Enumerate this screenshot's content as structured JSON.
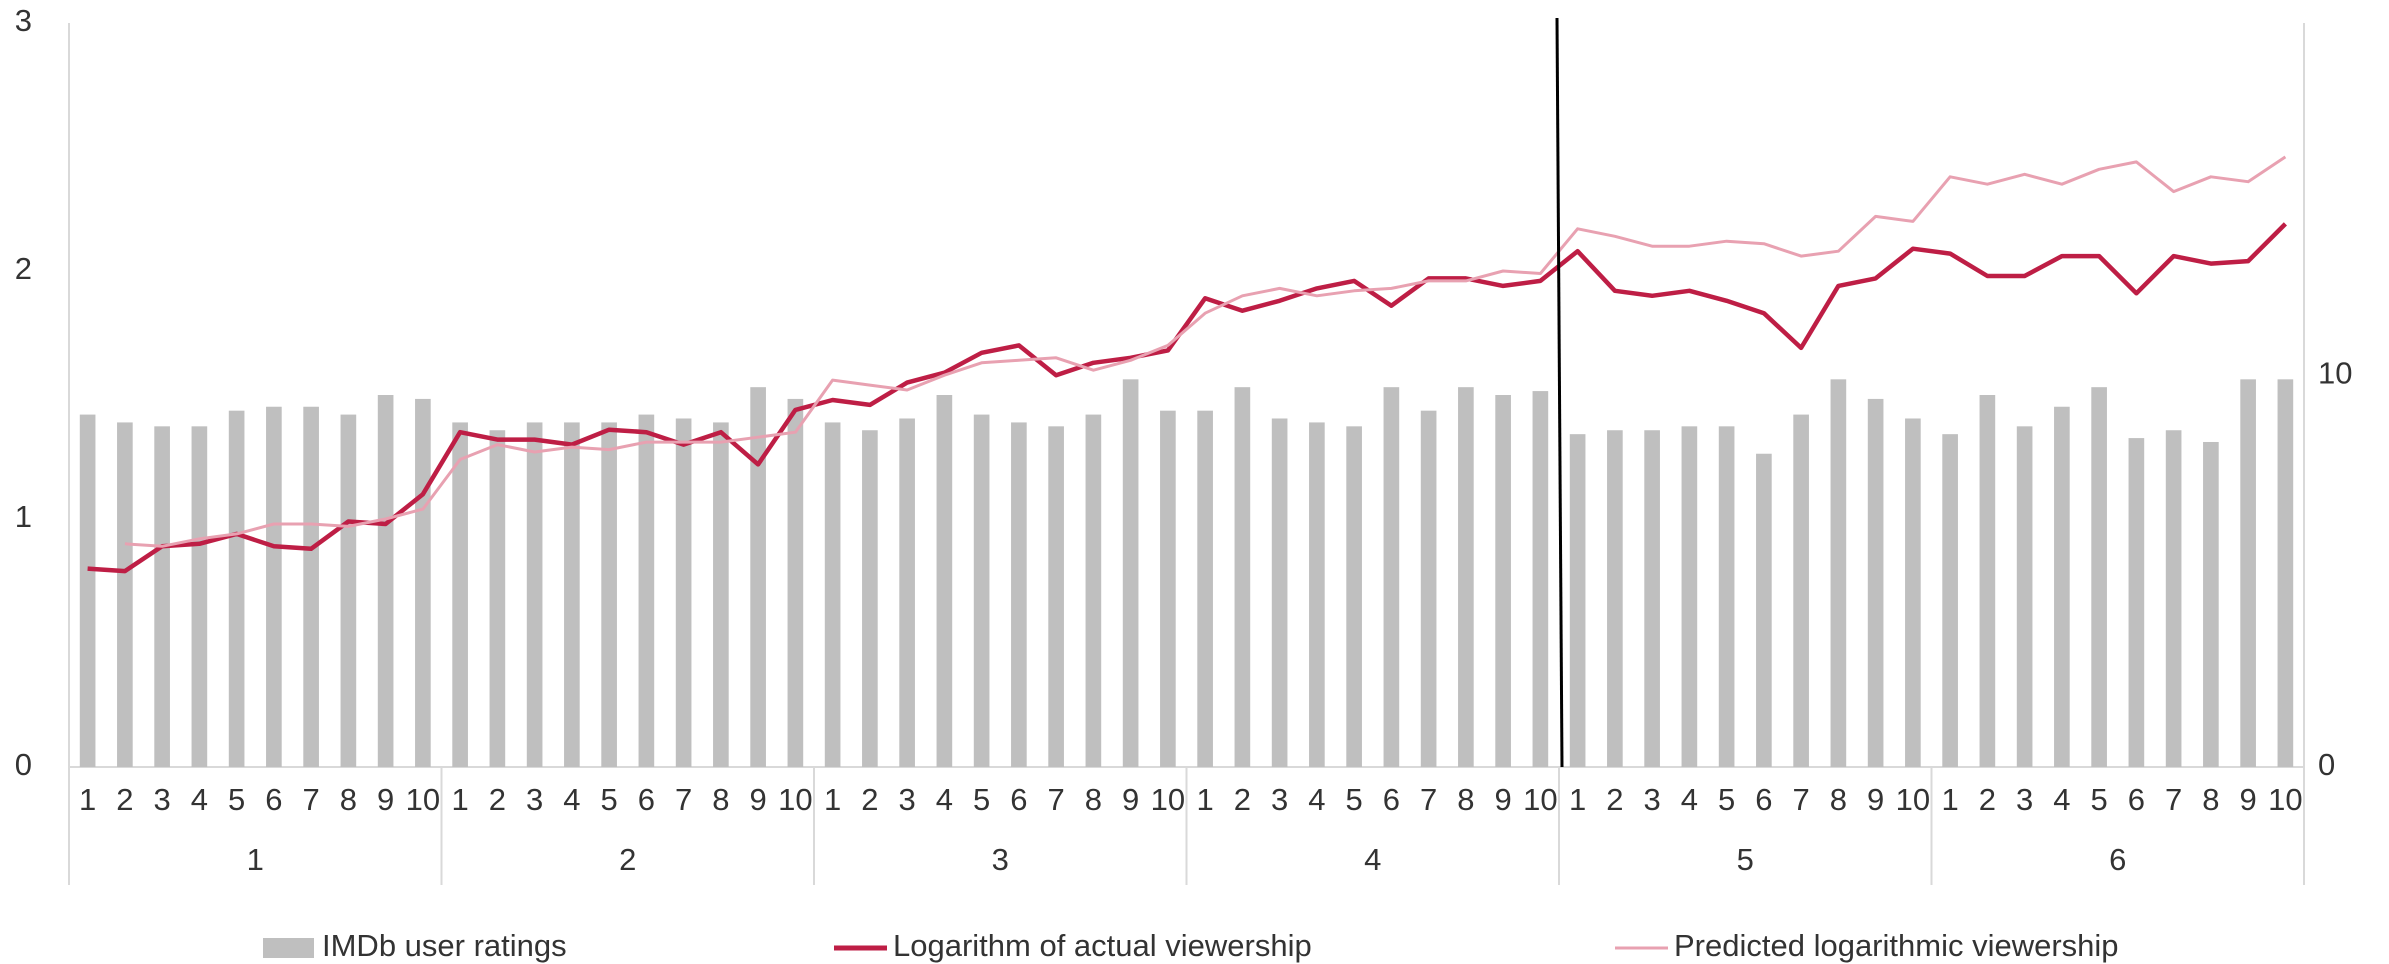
{
  "chart_data": {
    "type": "bar",
    "categories": [
      "1",
      "2",
      "3",
      "4",
      "5",
      "6",
      "7",
      "8",
      "9",
      "10",
      "1",
      "2",
      "3",
      "4",
      "5",
      "6",
      "7",
      "8",
      "9",
      "10",
      "1",
      "2",
      "3",
      "4",
      "5",
      "6",
      "7",
      "8",
      "9",
      "10",
      "1",
      "2",
      "3",
      "4",
      "5",
      "6",
      "7",
      "8",
      "9",
      "10",
      "1",
      "2",
      "3",
      "4",
      "5",
      "6",
      "7",
      "8",
      "9",
      "10",
      "1",
      "2",
      "3",
      "4",
      "5",
      "6",
      "7",
      "8",
      "9",
      "10"
    ],
    "groups": [
      "1",
      "2",
      "3",
      "4",
      "5",
      "6"
    ],
    "ylim": [
      0,
      3
    ],
    "yticks": [
      0,
      1,
      2,
      3
    ],
    "y2lim": [
      0,
      19
    ],
    "y2ticks": [
      0,
      10
    ],
    "series": [
      {
        "name": "IMDb user ratings",
        "type": "bar",
        "axis": "y2",
        "color": "#bfbfbf",
        "values": [
          9.0,
          8.8,
          8.7,
          8.7,
          9.1,
          9.2,
          9.2,
          9.0,
          9.5,
          9.4,
          8.8,
          8.6,
          8.8,
          8.8,
          8.8,
          9.0,
          8.9,
          8.8,
          9.7,
          9.4,
          8.8,
          8.6,
          8.9,
          9.5,
          9.0,
          8.8,
          8.7,
          9.0,
          9.9,
          9.1,
          9.1,
          9.7,
          8.9,
          8.8,
          8.7,
          9.7,
          9.1,
          9.7,
          9.5,
          9.6,
          8.5,
          8.6,
          8.6,
          8.7,
          8.7,
          8.0,
          9.0,
          9.9,
          9.4,
          8.9,
          8.5,
          9.5,
          8.7,
          9.2,
          9.7,
          8.4,
          8.6,
          8.3,
          9.9,
          9.9
        ]
      },
      {
        "name": "Logarithm of actual viewership",
        "type": "line",
        "color": "#be1e45",
        "values": [
          0.8,
          0.79,
          0.89,
          0.9,
          0.94,
          0.89,
          0.88,
          0.99,
          0.98,
          1.1,
          1.35,
          1.32,
          1.32,
          1.3,
          1.36,
          1.35,
          1.3,
          1.35,
          1.22,
          1.44,
          1.48,
          1.46,
          1.55,
          1.59,
          1.67,
          1.7,
          1.58,
          1.63,
          1.65,
          1.68,
          1.89,
          1.84,
          1.88,
          1.93,
          1.96,
          1.86,
          1.97,
          1.97,
          1.94,
          1.96,
          2.08,
          1.92,
          1.9,
          1.92,
          1.88,
          1.83,
          1.69,
          1.94,
          1.97,
          2.09,
          2.07,
          1.98,
          1.98,
          2.06,
          2.06,
          1.91,
          2.06,
          2.03,
          2.04,
          2.19
        ]
      },
      {
        "name": "Predicted logarithmic viewership",
        "type": "line",
        "color": "#e8a1b1",
        "values": [
          null,
          0.9,
          0.89,
          0.92,
          0.94,
          0.98,
          0.98,
          0.97,
          1.0,
          1.04,
          1.24,
          1.3,
          1.27,
          1.29,
          1.28,
          1.31,
          1.31,
          1.31,
          1.33,
          1.35,
          1.56,
          1.54,
          1.52,
          1.58,
          1.63,
          1.64,
          1.65,
          1.6,
          1.64,
          1.7,
          1.83,
          1.9,
          1.93,
          1.9,
          1.92,
          1.93,
          1.96,
          1.96,
          2.0,
          1.99,
          2.17,
          2.14,
          2.1,
          2.1,
          2.12,
          2.11,
          2.06,
          2.08,
          2.22,
          2.2,
          2.38,
          2.35,
          2.39,
          2.35,
          2.41,
          2.44,
          2.32,
          2.38,
          2.36,
          2.46
        ]
      }
    ]
  }
}
